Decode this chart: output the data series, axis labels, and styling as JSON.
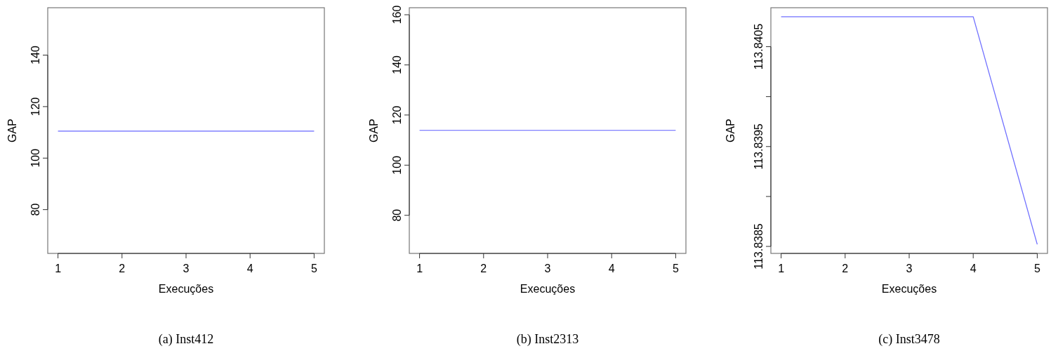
{
  "chart_data": [
    {
      "type": "line",
      "title": "(a) Inst412",
      "xlabel": "Execuções",
      "ylabel": "GAP",
      "x": [
        1,
        2,
        3,
        4,
        5
      ],
      "series": [
        {
          "color": "#8080ff",
          "values": [
            110.5,
            110.5,
            110.5,
            110.5,
            110.5
          ]
        }
      ],
      "xlim": [
        0.84,
        5.16
      ],
      "xticks": [
        1,
        2,
        3,
        4,
        5
      ],
      "ylim": [
        63,
        158.4
      ],
      "yticks": [
        80,
        100,
        120,
        140
      ],
      "grid": false
    },
    {
      "type": "line",
      "title": "(b) Inst2313",
      "xlabel": "Execuções",
      "ylabel": "GAP",
      "x": [
        1,
        2,
        3,
        4,
        5
      ],
      "series": [
        {
          "color": "#8080ff",
          "values": [
            113.9,
            113.9,
            113.9,
            113.9,
            113.9
          ]
        }
      ],
      "xlim": [
        0.84,
        5.16
      ],
      "xticks": [
        1,
        2,
        3,
        4,
        5
      ],
      "ylim": [
        64.8,
        162.8
      ],
      "yticks": [
        80,
        100,
        120,
        140,
        160
      ],
      "grid": false
    },
    {
      "type": "line",
      "title": "(c) Inst3478",
      "xlabel": "Execuções",
      "ylabel": "GAP",
      "x": [
        1,
        2,
        3,
        4,
        5
      ],
      "series": [
        {
          "color": "#7070ff",
          "values": [
            113.8408,
            113.8408,
            113.8408,
            113.8408,
            113.83852
          ]
        }
      ],
      "xlim": [
        0.84,
        5.16
      ],
      "xticks": [
        1,
        2,
        3,
        4,
        5
      ],
      "ylim": [
        113.83843,
        113.84089
      ],
      "yticks": [
        {
          "value": 113.8385,
          "label": "113.8385"
        },
        {
          "value": 113.839,
          "label": null
        },
        {
          "value": 113.8395,
          "label": "113.8395"
        },
        {
          "value": 113.84,
          "label": null
        },
        {
          "value": 113.8405,
          "label": "113.8405"
        }
      ],
      "grid": false
    }
  ]
}
